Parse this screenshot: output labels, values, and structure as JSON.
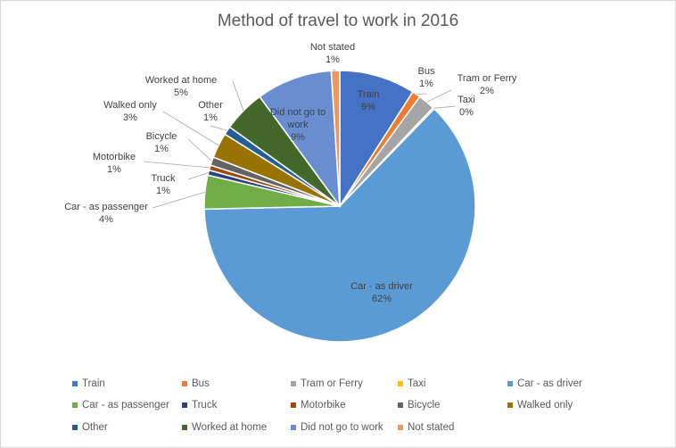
{
  "chart_data": {
    "type": "pie",
    "title": "Method of travel to work in 2016",
    "slices": [
      {
        "label": "Train",
        "value": 9,
        "pct_label": "9%",
        "color": "#4472c4"
      },
      {
        "label": "Bus",
        "value": 1,
        "pct_label": "1%",
        "color": "#ed7d31"
      },
      {
        "label": "Tram or Ferry",
        "value": 2,
        "pct_label": "2%",
        "color": "#a5a5a5"
      },
      {
        "label": "Taxi",
        "value": 0.2,
        "pct_label": "0%",
        "color": "#ffc000"
      },
      {
        "label": "Car - as driver",
        "value": 62,
        "pct_label": "62%",
        "color": "#5b9bd5"
      },
      {
        "label": "Car - as passenger",
        "value": 4,
        "pct_label": "4%",
        "color": "#70ad47"
      },
      {
        "label": "Truck",
        "value": 0.6,
        "pct_label": "1%",
        "color": "#264478"
      },
      {
        "label": "Motorbike",
        "value": 0.6,
        "pct_label": "1%",
        "color": "#9e480e"
      },
      {
        "label": "Bicycle",
        "value": 1,
        "pct_label": "1%",
        "color": "#636363"
      },
      {
        "label": "Walked only",
        "value": 3,
        "pct_label": "3%",
        "color": "#997300"
      },
      {
        "label": "Other",
        "value": 1,
        "pct_label": "1%",
        "color": "#255e91"
      },
      {
        "label": "Worked at home",
        "value": 5,
        "pct_label": "5%",
        "color": "#43682b"
      },
      {
        "label": "Did not go to work",
        "value": 9,
        "pct_label": "9%",
        "color": "#698ed0"
      },
      {
        "label": "Not stated",
        "value": 1,
        "pct_label": "1%",
        "color": "#f1975a"
      }
    ],
    "legend_position": "bottom"
  }
}
